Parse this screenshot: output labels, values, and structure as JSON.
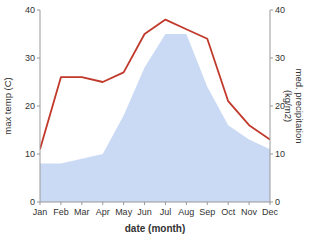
{
  "chart_data": {
    "type": "line",
    "categories": [
      "Jan",
      "Feb",
      "Mar",
      "Apr",
      "May",
      "Jun",
      "Jul",
      "Aug",
      "Sep",
      "Oct",
      "Nov",
      "Dec"
    ],
    "series": [
      {
        "type": "line",
        "color": "#c0392b",
        "values": [
          11,
          26,
          26,
          25,
          27,
          35,
          38,
          36,
          34,
          21,
          16,
          13
        ]
      },
      {
        "type": "area",
        "color": "#b8cef0",
        "axis": "y2",
        "values": [
          8,
          8,
          9,
          10,
          18,
          28,
          35,
          35,
          24,
          16,
          13,
          11
        ]
      }
    ],
    "xlabel": "date (month)",
    "ylabel": "max temp (C)",
    "y2label": "med. precipitation\n(kg/m2)",
    "ylim": [
      0,
      40
    ],
    "yticks": [
      0,
      10,
      20,
      30,
      40
    ],
    "y2lim": [
      0,
      40
    ],
    "y2ticks": [
      0,
      10,
      20,
      30,
      40
    ],
    "grid": false
  }
}
